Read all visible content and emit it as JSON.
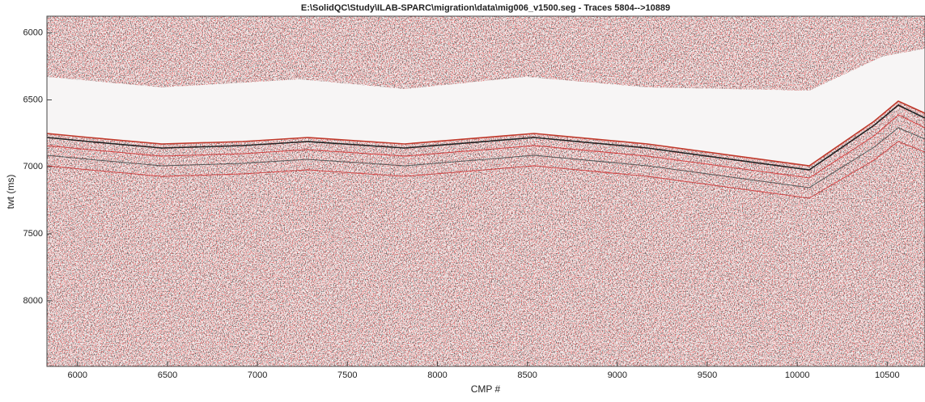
{
  "chart_data": {
    "type": "image",
    "title": "E:\\SolidQC\\Study\\ILAB-SPARC\\migration\\data\\mig006_v1500.seg - Traces 5804-->10889",
    "x_label": "CMP #",
    "y_label": "twt (ms)",
    "xlim": [
      5830,
      10710
    ],
    "xticks": [
      6000,
      6500,
      7000,
      7500,
      8000,
      8500,
      9000,
      9500,
      10000,
      10500
    ],
    "ylim": [
      5875,
      8490
    ],
    "yticks": [
      6000,
      6500,
      7000,
      7500,
      8000
    ],
    "y_reversed": true
  }
}
